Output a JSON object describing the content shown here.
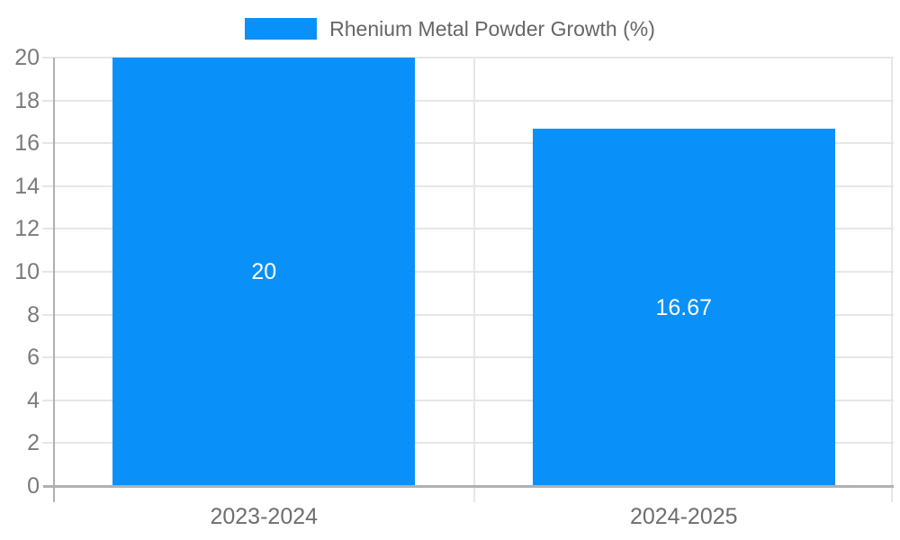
{
  "chart_data": {
    "type": "bar",
    "title": "",
    "legend_label": "Rhenium Metal Powder Growth (%)",
    "legend_position": "top",
    "categories": [
      "2023-2024",
      "2024-2025"
    ],
    "series": [
      {
        "name": "Rhenium Metal Powder Growth (%)",
        "values": [
          20,
          16.67
        ],
        "data_labels": [
          "20",
          "16.67"
        ]
      }
    ],
    "xlabel": "",
    "ylabel": "",
    "ylim": [
      0,
      20
    ],
    "yticks": [
      0,
      2,
      4,
      6,
      8,
      10,
      12,
      14,
      16,
      18,
      20
    ],
    "grid": true,
    "bar_to_category_width_ratio": 0.72
  },
  "palette": {
    "background": "#ffffff",
    "bar": "#0a90f9",
    "grid": "#e6e6e6",
    "axis": "#b0b0b0",
    "y_tick_label": "#7a7a7a",
    "x_tick_label": "#6e6e6e",
    "legend_label": "#666666",
    "value_label": "#ffffff"
  }
}
